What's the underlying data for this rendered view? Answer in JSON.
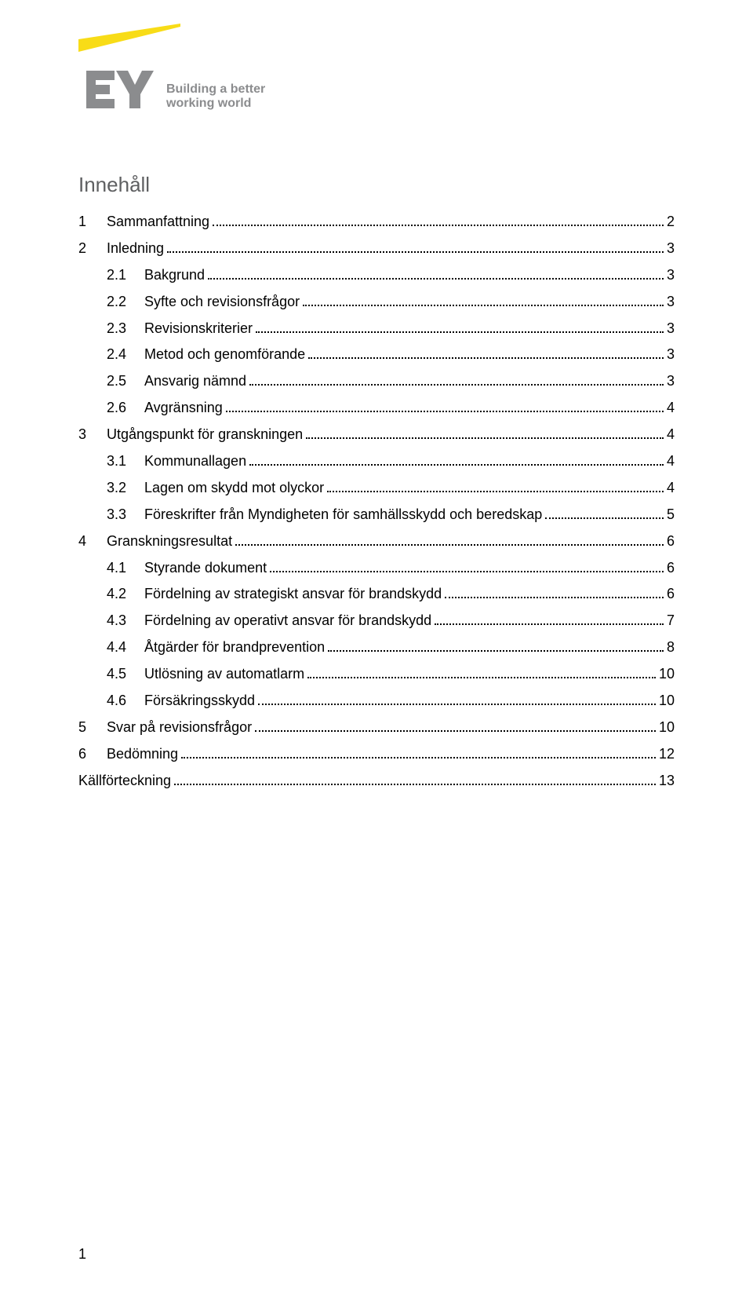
{
  "logo": {
    "tagline_line1": "Building a better",
    "tagline_line2": "working world",
    "brand_yellow": "#f8dc17",
    "brand_gray": "#8b8c8e",
    "tagline_gray": "#8b8c8e"
  },
  "toc_title": "Innehåll",
  "toc": [
    {
      "level": 1,
      "num": "1",
      "label": "Sammanfattning",
      "page": "2"
    },
    {
      "level": 1,
      "num": "2",
      "label": "Inledning",
      "page": "3"
    },
    {
      "level": 2,
      "num": "2.1",
      "label": "Bakgrund",
      "page": "3"
    },
    {
      "level": 2,
      "num": "2.2",
      "label": "Syfte och revisionsfrågor",
      "page": "3"
    },
    {
      "level": 2,
      "num": "2.3",
      "label": "Revisionskriterier",
      "page": "3"
    },
    {
      "level": 2,
      "num": "2.4",
      "label": "Metod och genomförande",
      "page": "3"
    },
    {
      "level": 2,
      "num": "2.5",
      "label": "Ansvarig nämnd",
      "page": "3"
    },
    {
      "level": 2,
      "num": "2.6",
      "label": "Avgränsning",
      "page": "4"
    },
    {
      "level": 1,
      "num": "3",
      "label": "Utgångspunkt för granskningen",
      "page": "4"
    },
    {
      "level": 2,
      "num": "3.1",
      "label": "Kommunallagen",
      "page": "4"
    },
    {
      "level": 2,
      "num": "3.2",
      "label": "Lagen om skydd mot olyckor",
      "page": "4"
    },
    {
      "level": 2,
      "num": "3.3",
      "label": "Föreskrifter från Myndigheten för samhällsskydd och beredskap",
      "page": "5"
    },
    {
      "level": 1,
      "num": "4",
      "label": "Granskningsresultat",
      "page": "6"
    },
    {
      "level": 2,
      "num": "4.1",
      "label": "Styrande dokument",
      "page": "6"
    },
    {
      "level": 2,
      "num": "4.2",
      "label": "Fördelning av strategiskt ansvar för brandskydd",
      "page": "6"
    },
    {
      "level": 2,
      "num": "4.3",
      "label": "Fördelning av operativt ansvar för brandskydd",
      "page": "7"
    },
    {
      "level": 2,
      "num": "4.4",
      "label": "Åtgärder för brandprevention",
      "page": "8"
    },
    {
      "level": 2,
      "num": "4.5",
      "label": "Utlösning av automatlarm",
      "page": "10"
    },
    {
      "level": 2,
      "num": "4.6",
      "label": "Försäkringsskydd",
      "page": "10"
    },
    {
      "level": 1,
      "num": "5",
      "label": "Svar på revisionsfrågor",
      "page": "10"
    },
    {
      "level": 1,
      "num": "6",
      "label": "Bedömning",
      "page": "12"
    },
    {
      "level": 0,
      "num": "",
      "label": "Källförteckning",
      "page": "13"
    }
  ],
  "footer_page_number": "1"
}
